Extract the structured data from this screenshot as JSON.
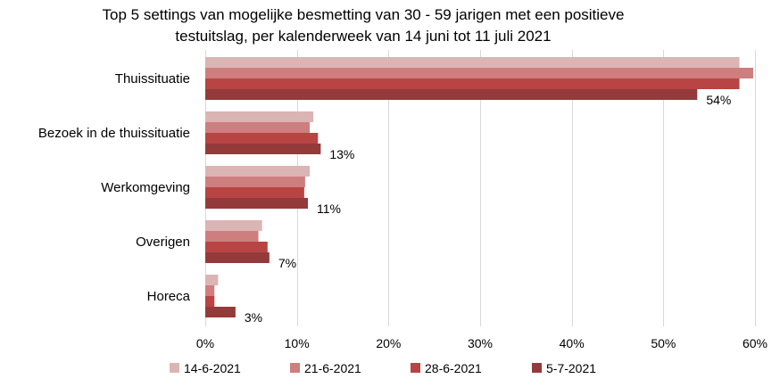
{
  "chart_data": {
    "type": "bar",
    "orientation": "horizontal",
    "title": [
      "Top 5 settings van mogelijke besmetting van 30 - 59 jarigen met een positieve",
      "testuitslag, per kalenderweek van 14 juni tot 11 juli 2021"
    ],
    "categories": [
      "Thuissituatie",
      "Bezoek in de thuissituatie",
      "Werkomgeving",
      "Overigen",
      "Horeca"
    ],
    "series": [
      {
        "name": "14-6-2021",
        "color": "#dbb4b4",
        "values": [
          58.3,
          11.8,
          11.4,
          6.2,
          1.4
        ]
      },
      {
        "name": "21-6-2021",
        "color": "#ce7e7e",
        "values": [
          59.8,
          11.4,
          10.9,
          5.8,
          1.0
        ]
      },
      {
        "name": "28-6-2021",
        "color": "#b94444",
        "values": [
          58.3,
          12.3,
          10.8,
          6.8,
          1.0
        ]
      },
      {
        "name": "5-7-2021",
        "color": "#943a3a",
        "values": [
          53.7,
          12.6,
          11.2,
          7.0,
          3.3
        ]
      }
    ],
    "data_labels": [
      "54%",
      "13%",
      "11%",
      "7%",
      "3%"
    ],
    "xlim": [
      0,
      60
    ],
    "xticks": [
      0,
      10,
      20,
      30,
      40,
      50,
      60
    ],
    "xtick_labels": [
      "0%",
      "10%",
      "20%",
      "30%",
      "40%",
      "50%",
      "60%"
    ],
    "grid": true,
    "legend_position": "bottom"
  }
}
